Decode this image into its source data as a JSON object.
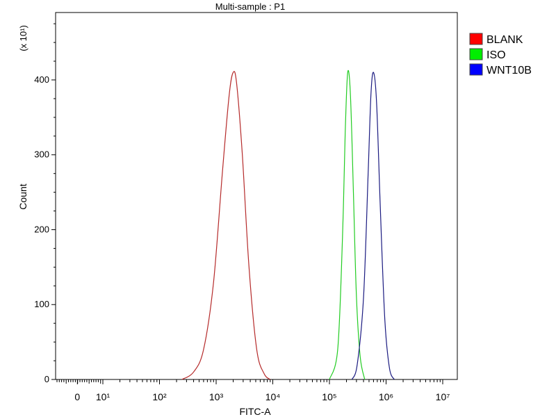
{
  "chart_data": {
    "type": "line",
    "title": "Multi-sample : P1",
    "xlabel": "FITC-A",
    "ylabel": "Count",
    "y_multiplier_label": "(x 10¹)",
    "x_scale": "log",
    "x_ticks": [
      {
        "value": 0,
        "label": "0"
      },
      {
        "value": 10,
        "label": "10¹"
      },
      {
        "value": 100,
        "label": "10²"
      },
      {
        "value": 1000,
        "label": "10³"
      },
      {
        "value": 10000,
        "label": "10⁴"
      },
      {
        "value": 100000,
        "label": "10⁵"
      },
      {
        "value": 1000000,
        "label": "10⁶"
      },
      {
        "value": 10000000,
        "label": "10⁷"
      }
    ],
    "y_ticks": [
      0,
      100,
      200,
      300,
      400
    ],
    "ylim": [
      0,
      490
    ],
    "grid": false,
    "legend_position": "top-right",
    "series": [
      {
        "name": "BLANK",
        "color": "#ff0000",
        "stroke": "#b52a2a",
        "points": [
          [
            250,
            0
          ],
          [
            400,
            10
          ],
          [
            600,
            40
          ],
          [
            900,
            130
          ],
          [
            1300,
            280
          ],
          [
            1700,
            380
          ],
          [
            2000,
            410
          ],
          [
            2300,
            395
          ],
          [
            2900,
            300
          ],
          [
            3800,
            150
          ],
          [
            5200,
            40
          ],
          [
            7000,
            8
          ],
          [
            9000,
            0
          ]
        ]
      },
      {
        "name": "ISO",
        "color": "#00ee00",
        "stroke": "#22cc22",
        "points": [
          [
            100000,
            0
          ],
          [
            140000,
            40
          ],
          [
            170000,
            190
          ],
          [
            190000,
            330
          ],
          [
            210000,
            410
          ],
          [
            235000,
            380
          ],
          [
            265000,
            250
          ],
          [
            300000,
            110
          ],
          [
            350000,
            30
          ],
          [
            420000,
            0
          ]
        ]
      },
      {
        "name": "WNT10B",
        "color": "#0000ff",
        "stroke": "#1a1a80",
        "points": [
          [
            250000,
            0
          ],
          [
            310000,
            20
          ],
          [
            400000,
            110
          ],
          [
            480000,
            270
          ],
          [
            540000,
            380
          ],
          [
            600000,
            410
          ],
          [
            680000,
            370
          ],
          [
            790000,
            230
          ],
          [
            950000,
            80
          ],
          [
            1150000,
            15
          ],
          [
            1400000,
            0
          ]
        ]
      }
    ]
  }
}
